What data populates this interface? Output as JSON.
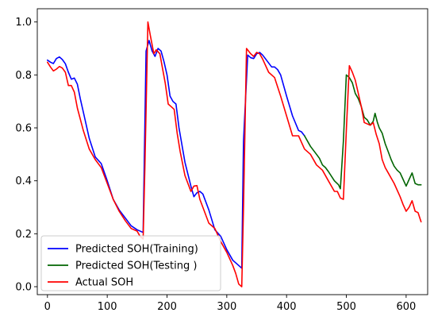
{
  "chart_data": {
    "type": "line",
    "title": "",
    "xlabel": "",
    "ylabel": "",
    "xlim": [
      -17,
      636
    ],
    "ylim": [
      -0.03,
      1.05
    ],
    "xticks": [
      0,
      100,
      200,
      300,
      400,
      500,
      600
    ],
    "yticks": [
      0.0,
      0.2,
      0.4,
      0.6,
      0.8,
      1.0
    ],
    "xtick_labels": [
      "0",
      "100",
      "200",
      "300",
      "400",
      "500",
      "600"
    ],
    "ytick_labels": [
      "0.0",
      "0.2",
      "0.4",
      "0.6",
      "0.8",
      "1.0"
    ],
    "grid": false,
    "legend_position": "lower-left",
    "series": [
      {
        "name": "Predicted SOH(Training)",
        "color": "#0000ff",
        "x": [
          0,
          5,
          10,
          15,
          20,
          25,
          30,
          35,
          40,
          45,
          50,
          55,
          60,
          70,
          80,
          90,
          100,
          110,
          120,
          130,
          140,
          150,
          160,
          165,
          170,
          175,
          180,
          185,
          190,
          195,
          200,
          205,
          210,
          215,
          220,
          230,
          240,
          245,
          250,
          255,
          260,
          270,
          280,
          290,
          300,
          310,
          320,
          325,
          328,
          335,
          340,
          345,
          350,
          355,
          360,
          365,
          370,
          375,
          380,
          385,
          390,
          400,
          410,
          420,
          425,
          430
        ],
        "y": [
          0.856,
          0.848,
          0.843,
          0.862,
          0.868,
          0.858,
          0.842,
          0.81,
          0.784,
          0.788,
          0.765,
          0.71,
          0.66,
          0.56,
          0.49,
          0.465,
          0.4,
          0.33,
          0.29,
          0.26,
          0.23,
          0.215,
          0.205,
          0.89,
          0.93,
          0.89,
          0.87,
          0.9,
          0.89,
          0.85,
          0.8,
          0.72,
          0.7,
          0.69,
          0.6,
          0.47,
          0.38,
          0.34,
          0.355,
          0.36,
          0.35,
          0.29,
          0.215,
          0.19,
          0.14,
          0.1,
          0.08,
          0.07,
          0.55,
          0.875,
          0.865,
          0.862,
          0.88,
          0.885,
          0.875,
          0.86,
          0.845,
          0.83,
          0.83,
          0.82,
          0.8,
          0.72,
          0.645,
          0.59,
          0.585,
          0.57
        ]
      },
      {
        "name": "Predicted SOH(Testing )",
        "color": "#006400",
        "x": [
          430,
          440,
          450,
          455,
          460,
          465,
          470,
          480,
          487,
          490,
          495,
          500,
          505,
          510,
          515,
          520,
          525,
          530,
          535,
          540,
          545,
          548,
          552,
          555,
          560,
          565,
          570,
          575,
          580,
          585,
          590,
          595,
          600,
          605,
          610,
          615,
          620,
          625
        ],
        "y": [
          0.57,
          0.53,
          0.5,
          0.485,
          0.46,
          0.45,
          0.435,
          0.4,
          0.385,
          0.37,
          0.55,
          0.8,
          0.79,
          0.77,
          0.73,
          0.71,
          0.68,
          0.64,
          0.63,
          0.61,
          0.625,
          0.655,
          0.62,
          0.6,
          0.58,
          0.54,
          0.51,
          0.48,
          0.455,
          0.44,
          0.43,
          0.405,
          0.38,
          0.405,
          0.43,
          0.39,
          0.385,
          0.385
        ]
      },
      {
        "name": "Actual SOH",
        "color": "#ff0000",
        "x": [
          0,
          5,
          10,
          15,
          20,
          25,
          30,
          35,
          40,
          45,
          50,
          60,
          70,
          80,
          90,
          100,
          110,
          120,
          130,
          140,
          150,
          155,
          160,
          163,
          168,
          172,
          178,
          182,
          188,
          192,
          197,
          202,
          207,
          212,
          217,
          222,
          230,
          240,
          245,
          250,
          255,
          260,
          270,
          280,
          290,
          300,
          310,
          315,
          320,
          325,
          328,
          333,
          340,
          345,
          350,
          355,
          360,
          370,
          380,
          390,
          400,
          410,
          420,
          430,
          440,
          450,
          460,
          470,
          480,
          485,
          490,
          495,
          500,
          505,
          510,
          515,
          520,
          525,
          530,
          540,
          545,
          550,
          555,
          560,
          565,
          570,
          580,
          590,
          595,
          600,
          605,
          610,
          615,
          620,
          625
        ],
        "y": [
          0.848,
          0.83,
          0.815,
          0.822,
          0.832,
          0.826,
          0.81,
          0.76,
          0.76,
          0.735,
          0.675,
          0.59,
          0.52,
          0.48,
          0.45,
          0.39,
          0.33,
          0.285,
          0.25,
          0.22,
          0.21,
          0.19,
          0.18,
          0.45,
          1.0,
          0.95,
          0.88,
          0.895,
          0.88,
          0.83,
          0.77,
          0.69,
          0.68,
          0.67,
          0.58,
          0.51,
          0.42,
          0.36,
          0.38,
          0.382,
          0.33,
          0.3,
          0.24,
          0.22,
          0.17,
          0.13,
          0.08,
          0.05,
          0.01,
          0.0,
          0.3,
          0.9,
          0.88,
          0.87,
          0.885,
          0.88,
          0.86,
          0.81,
          0.79,
          0.72,
          0.645,
          0.57,
          0.57,
          0.52,
          0.5,
          0.46,
          0.44,
          0.4,
          0.36,
          0.36,
          0.335,
          0.33,
          0.59,
          0.835,
          0.81,
          0.78,
          0.73,
          0.68,
          0.62,
          0.61,
          0.62,
          0.575,
          0.54,
          0.48,
          0.45,
          0.43,
          0.39,
          0.34,
          0.31,
          0.285,
          0.3,
          0.325,
          0.285,
          0.28,
          0.245
        ]
      }
    ]
  }
}
